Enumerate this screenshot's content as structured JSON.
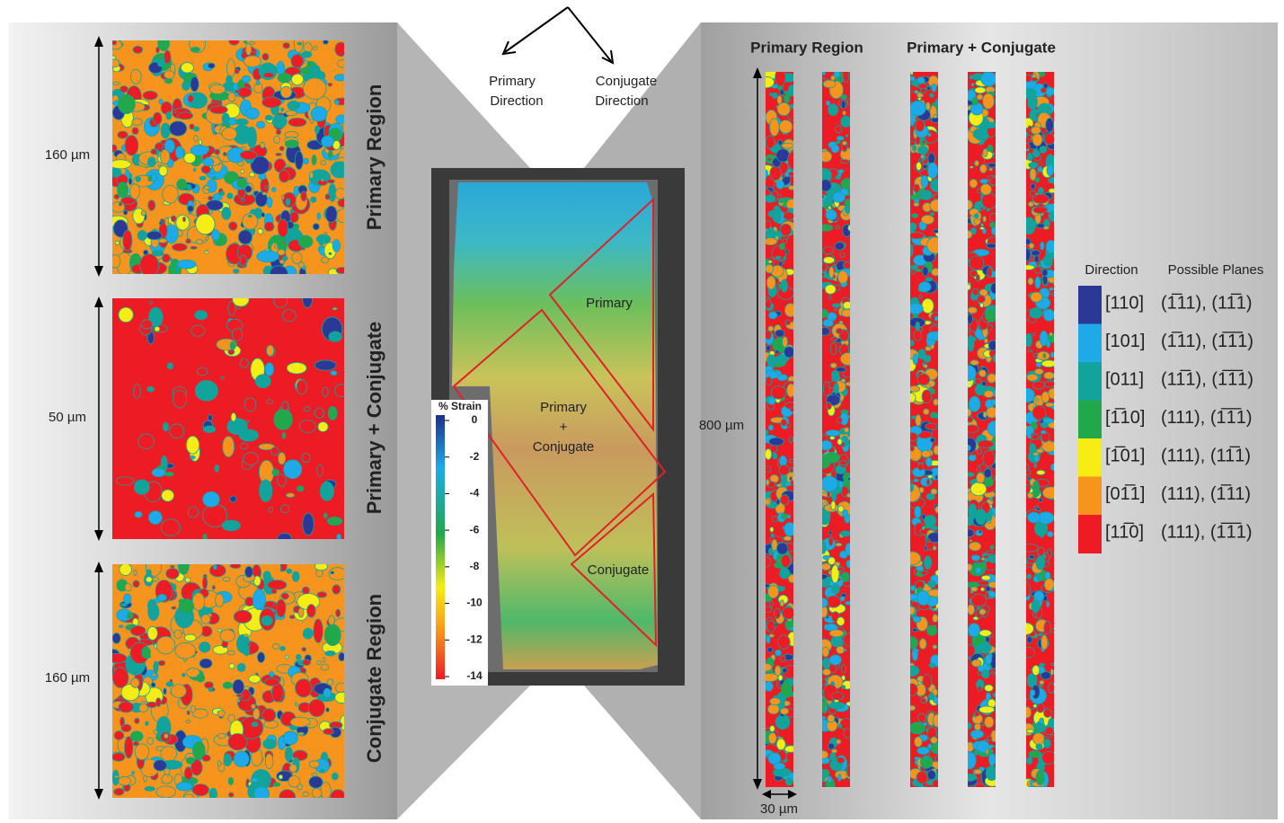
{
  "arrows": {
    "primary": [
      "Primary",
      "Direction"
    ],
    "conjugate": [
      "Conjugate",
      "Direction"
    ]
  },
  "left_maps": [
    {
      "region": "Primary Region",
      "scale": "160 µm"
    },
    {
      "region": "Primary + Conjugate",
      "scale": "50 µm"
    },
    {
      "region": "Conjugate Region",
      "scale": "160 µm"
    }
  ],
  "center": {
    "labels": [
      "Primary",
      "Primary",
      "+",
      "Conjugate",
      "Conjugate"
    ]
  },
  "colorbar": {
    "title": "% Strain",
    "ticks": [
      0,
      -2,
      -4,
      -6,
      -8,
      -10,
      -12,
      -14
    ]
  },
  "strips": {
    "headers": [
      "Primary Region",
      "Primary + Conjugate"
    ],
    "length": "800 µm",
    "width": "30 µm"
  },
  "legend": {
    "headers": [
      "Direction",
      "Possible Planes"
    ],
    "rows": [
      {
        "direction": "[110]",
        "planes": "(1̅11), (11̅1)",
        "color": "#2b3896"
      },
      {
        "direction": "[101]",
        "planes": "(1̅11), (1̅1̅1)",
        "color": "#1eaae8"
      },
      {
        "direction": "[011]",
        "planes": "(11̅1), (1̅1̅1)",
        "color": "#12a39c"
      },
      {
        "direction": "[1̅10]",
        "planes": "(111), (1̅1̅1)",
        "color": "#20a84a"
      },
      {
        "direction": "[1̅01]",
        "planes": "(111), (11̅1)",
        "color": "#f7ec14"
      },
      {
        "direction": "[01̅1]",
        "planes": "(111), (1̅11)",
        "color": "#f7941d"
      },
      {
        "direction": "[11̅0]",
        "planes": "(111), (1̅1̅1)",
        "color": "#ed1c24"
      }
    ]
  }
}
